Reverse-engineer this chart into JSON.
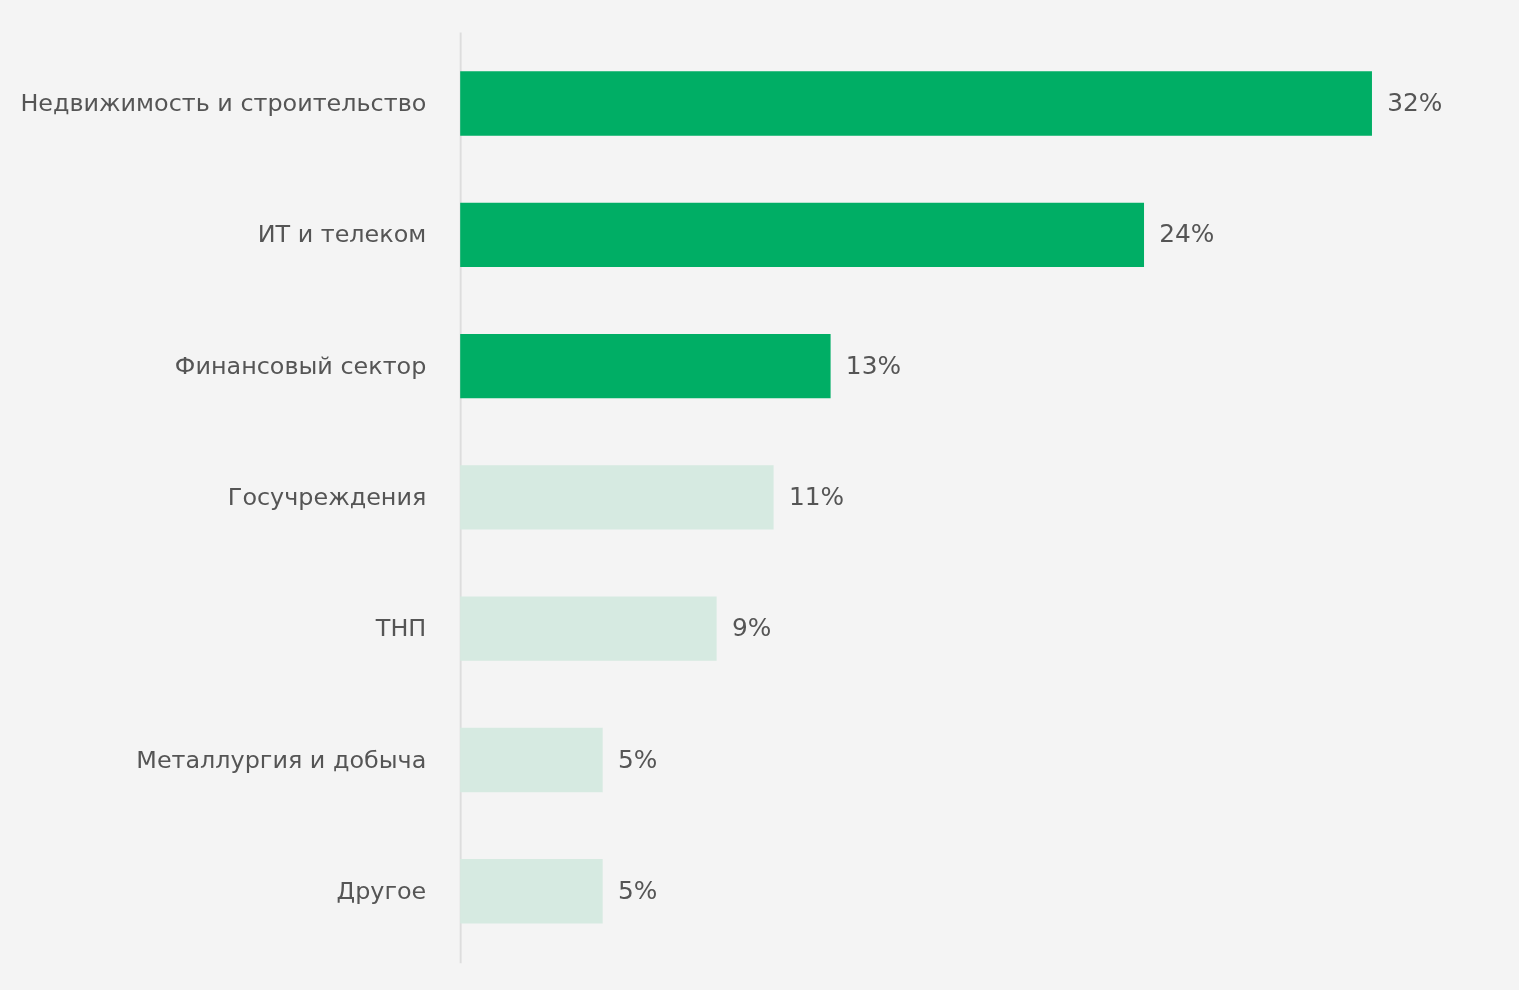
{
  "chart_data": {
    "type": "bar",
    "orientation": "horizontal",
    "categories": [
      "Недвижимость и строительство",
      "ИТ и телеком",
      "Финансовый сектор",
      "Госучреждения",
      "ТНП",
      "Металлургия и добыча",
      "Другое"
    ],
    "values": [
      32,
      24,
      13,
      11,
      9,
      5,
      5
    ],
    "value_labels": [
      "32%",
      "24%",
      "13%",
      "11%",
      "9%",
      "5%",
      "5%"
    ],
    "colors": [
      "#00ae65",
      "#00ae65",
      "#00ae65",
      "#d6eae1",
      "#d6eae1",
      "#d6eae1",
      "#d6eae1"
    ]
  }
}
